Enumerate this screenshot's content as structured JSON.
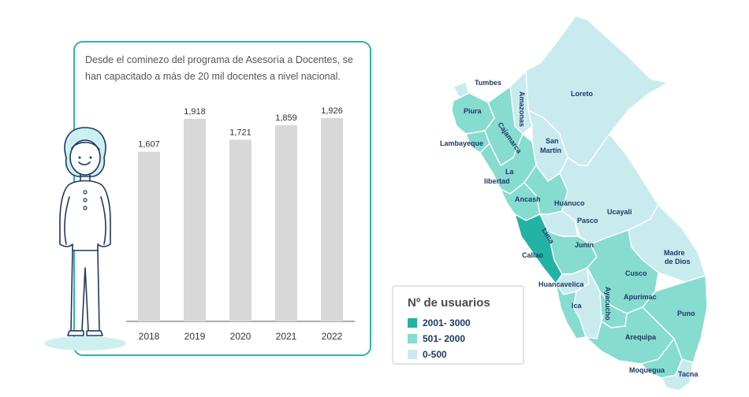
{
  "description": "Desde el cominezo del programa de Asesoría a Docentes, se han capacitado a más de 20 mil docentes a nivel nacional.",
  "chart_data": {
    "type": "bar",
    "title": "",
    "xlabel": "",
    "ylabel": "",
    "categories": [
      "2018",
      "2019",
      "2020",
      "2021",
      "2022"
    ],
    "values": [
      1607,
      1918,
      1721,
      1859,
      1926
    ],
    "value_labels": [
      "1,607",
      "1,918",
      "1,721",
      "1,859",
      "1,926"
    ],
    "ylim": [
      0,
      2000
    ],
    "grid": false,
    "bar_color": "#d8d8d8"
  },
  "legend": {
    "title": "Nº de usuarios",
    "items": [
      {
        "label": "2001- 3000",
        "color": "#22b3a5"
      },
      {
        "label": "501- 2000",
        "color": "#86dccf"
      },
      {
        "label": "0-500",
        "color": "#c9ebee"
      }
    ]
  },
  "map": {
    "labels": [
      "Tumbes",
      "Piura",
      "Lambayeque",
      "Amazonas",
      "Cajamarca",
      "Loreto",
      "San",
      "Martín",
      "La",
      "libertad",
      "Ancash",
      "Huánuco",
      "Ucayali",
      "Pasco",
      "Lima",
      "Callao",
      "Junín",
      "Madre",
      "de Dios",
      "Cusco",
      "Huancavelica",
      "Ayacucho",
      "Apurímac",
      "Ica",
      "Puno",
      "Arequipa",
      "Moquegua",
      "Tacna"
    ]
  }
}
